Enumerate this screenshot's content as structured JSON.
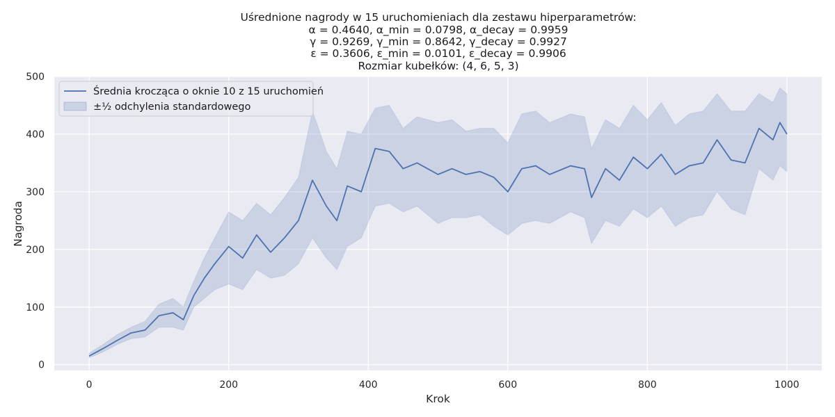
{
  "chart_data": {
    "type": "line",
    "title_lines": [
      "Uśrednione nagrody w 15 uruchomieniach dla zestawu hiperparametrów:",
      "α = 0.4640, α_min = 0.0798, α_decay = 0.9959",
      "γ = 0.9269, γ_min = 0.8642, γ_decay = 0.9927",
      "ε = 0.3606, ε_min = 0.0101, ε_decay = 0.9906",
      "Rozmiar kubełków: (4, 6, 5, 3)"
    ],
    "xlabel": "Krok",
    "ylabel": "Nagroda",
    "xlim": [
      -50,
      1050
    ],
    "ylim": [
      -10,
      500
    ],
    "xticks": [
      0,
      200,
      400,
      600,
      800,
      1000
    ],
    "yticks": [
      0,
      100,
      200,
      300,
      400,
      500
    ],
    "grid": true,
    "legend_position": "top-left",
    "legend": {
      "line_label": "Średnia krocząca o oknie 10 z 15 uruchomień",
      "band_label": "±½ odchylenia standardowego"
    },
    "colors": {
      "line": "#4c72b0",
      "band": "#4c72b0",
      "background": "#eaeaf2",
      "grid": "#ffffff"
    },
    "series": [
      {
        "name": "Średnia krocząca o oknie 10 z 15 uruchomień",
        "x": [
          0,
          20,
          40,
          60,
          80,
          100,
          120,
          135,
          150,
          165,
          180,
          200,
          220,
          240,
          260,
          280,
          300,
          320,
          340,
          355,
          370,
          390,
          410,
          430,
          450,
          470,
          500,
          520,
          540,
          560,
          580,
          600,
          620,
          640,
          660,
          690,
          710,
          720,
          740,
          760,
          780,
          800,
          820,
          840,
          860,
          880,
          900,
          920,
          940,
          960,
          980,
          990,
          1000
        ],
        "y": [
          15,
          28,
          42,
          55,
          60,
          85,
          90,
          78,
          120,
          150,
          175,
          205,
          185,
          225,
          195,
          220,
          250,
          320,
          275,
          250,
          310,
          300,
          375,
          370,
          340,
          350,
          330,
          340,
          330,
          335,
          325,
          300,
          340,
          345,
          330,
          345,
          340,
          290,
          340,
          320,
          360,
          340,
          365,
          330,
          345,
          350,
          390,
          355,
          350,
          410,
          390,
          420,
          400
        ],
        "lower": [
          12,
          22,
          35,
          45,
          48,
          65,
          65,
          60,
          100,
          115,
          130,
          140,
          130,
          165,
          150,
          155,
          175,
          220,
          185,
          165,
          205,
          220,
          275,
          280,
          265,
          275,
          245,
          255,
          255,
          260,
          240,
          225,
          245,
          250,
          245,
          265,
          255,
          210,
          250,
          240,
          270,
          255,
          275,
          240,
          255,
          260,
          300,
          270,
          260,
          340,
          320,
          345,
          335
        ],
        "upper": [
          20,
          35,
          52,
          65,
          75,
          105,
          115,
          100,
          145,
          185,
          220,
          265,
          250,
          280,
          260,
          290,
          325,
          440,
          370,
          340,
          405,
          400,
          445,
          450,
          410,
          430,
          420,
          425,
          405,
          410,
          410,
          385,
          435,
          440,
          420,
          435,
          430,
          375,
          425,
          410,
          450,
          425,
          455,
          415,
          435,
          440,
          470,
          440,
          440,
          470,
          455,
          480,
          470
        ]
      }
    ]
  }
}
